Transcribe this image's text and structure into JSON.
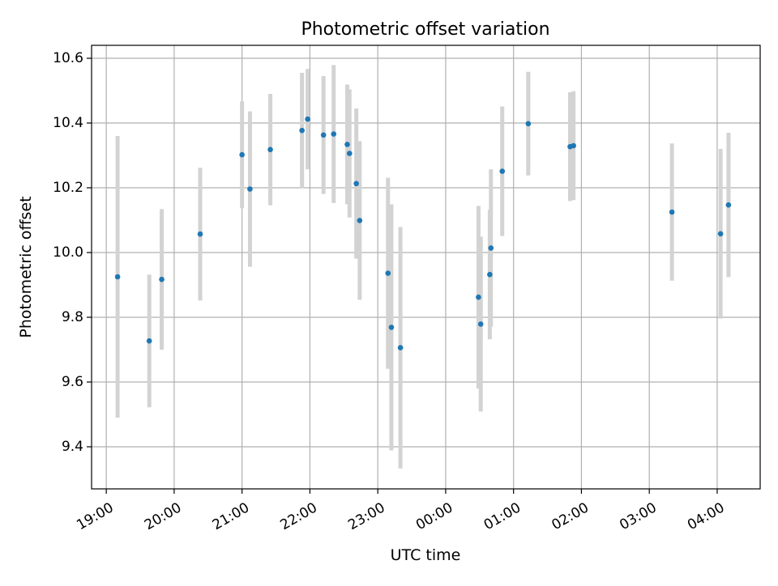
{
  "chart_data": {
    "type": "scatter",
    "title": "Photometric offset variation",
    "xlabel": "UTC time",
    "ylabel": "Photometric offset",
    "grid": true,
    "legend": "none",
    "x_unit": "hours (UTC clock time, continuing past midnight as 24+)",
    "xlim": [
      "18:47",
      "28:38"
    ],
    "ylim": [
      9.27,
      10.64
    ],
    "x_ticks": [
      "19:00",
      "20:00",
      "21:00",
      "22:00",
      "23:00",
      "00:00",
      "01:00",
      "02:00",
      "03:00",
      "04:00"
    ],
    "y_ticks": [
      "9.4",
      "9.6",
      "9.8",
      "10.0",
      "10.2",
      "10.4",
      "10.6"
    ],
    "colors": {
      "point": "#1f77b4",
      "errorbar": "#d3d3d3",
      "grid": "#b0b0b0"
    },
    "points": [
      {
        "x": "19:10",
        "y": 9.925,
        "err": 0.435
      },
      {
        "x": "19:38",
        "y": 9.727,
        "err": 0.205
      },
      {
        "x": "19:49",
        "y": 9.917,
        "err": 0.217
      },
      {
        "x": "20:23",
        "y": 10.057,
        "err": 0.205
      },
      {
        "x": "21:00",
        "y": 10.302,
        "err": 0.165
      },
      {
        "x": "21:07",
        "y": 10.196,
        "err": 0.24
      },
      {
        "x": "21:25",
        "y": 10.318,
        "err": 0.172
      },
      {
        "x": "21:53",
        "y": 10.377,
        "err": 0.178
      },
      {
        "x": "21:58",
        "y": 10.412,
        "err": 0.155
      },
      {
        "x": "22:12",
        "y": 10.363,
        "err": 0.182
      },
      {
        "x": "22:21",
        "y": 10.366,
        "err": 0.213
      },
      {
        "x": "22:33",
        "y": 10.334,
        "err": 0.185
      },
      {
        "x": "22:35",
        "y": 10.306,
        "err": 0.198
      },
      {
        "x": "22:41",
        "y": 10.213,
        "err": 0.232
      },
      {
        "x": "22:44",
        "y": 10.099,
        "err": 0.245
      },
      {
        "x": "23:09",
        "y": 9.936,
        "err": 0.295
      },
      {
        "x": "23:12",
        "y": 9.769,
        "err": 0.38
      },
      {
        "x": "23:20",
        "y": 9.706,
        "err": 0.373
      },
      {
        "x": "00:29",
        "y": 9.862,
        "err": 0.282
      },
      {
        "x": "00:31",
        "y": 9.779,
        "err": 0.27
      },
      {
        "x": "00:39",
        "y": 9.932,
        "err": 0.2
      },
      {
        "x": "00:40",
        "y": 10.014,
        "err": 0.243
      },
      {
        "x": "00:50",
        "y": 10.251,
        "err": 0.2
      },
      {
        "x": "01:13",
        "y": 10.398,
        "err": 0.16
      },
      {
        "x": "01:50",
        "y": 10.327,
        "err": 0.168
      },
      {
        "x": "01:53",
        "y": 10.33,
        "err": 0.168
      },
      {
        "x": "03:20",
        "y": 10.125,
        "err": 0.212
      },
      {
        "x": "04:03",
        "y": 10.058,
        "err": 0.262
      },
      {
        "x": "04:10",
        "y": 10.147,
        "err": 0.223
      }
    ]
  }
}
